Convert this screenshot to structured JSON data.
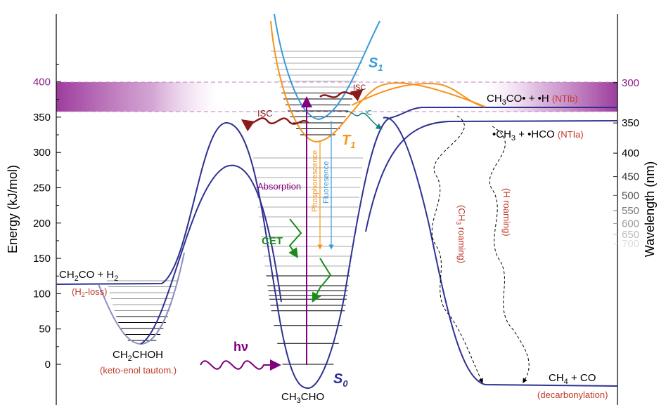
{
  "axes": {
    "left_title": "Energy (kJ/mol)",
    "right_title": "Wavelength (nm)",
    "energy_ticks": [
      "0",
      "50",
      "100",
      "150",
      "200",
      "250",
      "300",
      "350",
      "400"
    ],
    "wavelength_ticks": [
      "300",
      "350",
      "400",
      "450",
      "500",
      "550",
      "600",
      "650",
      "700"
    ]
  },
  "states": {
    "s0": "S",
    "s0_sub": "0",
    "s1": "S",
    "s1_sub": "1",
    "t1": "T",
    "t1_sub": "1"
  },
  "species": {
    "acetaldehyde": {
      "a": "CH",
      "sub1": "3",
      "b": "CHO"
    },
    "vinyl_alcohol": {
      "a": "CH",
      "sub1": "2",
      "b": "CHOH"
    },
    "vinyl_alcohol_note": "(keto-enol tautom.)",
    "ketene": {
      "a": "CH",
      "sub1": "2",
      "b": "CO + H",
      "sub2": "2"
    },
    "ketene_note": {
      "a": "(H",
      "sub": "2",
      "b": "-loss)"
    },
    "acetyl": "CH3CO• + •H",
    "acetyl_parts": {
      "a": "CH",
      "sub1": "3",
      "b": "CO• + •H "
    },
    "acetyl_note": "(NTIb)",
    "methyl": {
      "a": "•CH",
      "sub1": "3",
      "b": " + •HCO "
    },
    "methyl_note": "(NTIa)",
    "methane": {
      "a": "CH",
      "sub1": "4",
      "b": " + CO"
    },
    "methane_note": "(decarbonylation)"
  },
  "processes": {
    "absorption": "Absorption",
    "phosphorescence": "Phosphorescence",
    "fluorescence": "Fluoresence",
    "isc": "ISC",
    "ic": "IC",
    "cet": "CET",
    "hv": "hν",
    "ch3_roaming": {
      "a": "(CH",
      "sub": "3",
      "b": " roaming)"
    },
    "h_roaming": "(H roaming)"
  },
  "colors": {
    "s0": "#2e3192",
    "s1": "#3a9ad9",
    "t1": "#f7941d",
    "absorption": "#800080",
    "isc": "#8b1a1a",
    "cet": "#1a8a1a",
    "ic": "#138080",
    "band": "#8b1a8b"
  }
}
